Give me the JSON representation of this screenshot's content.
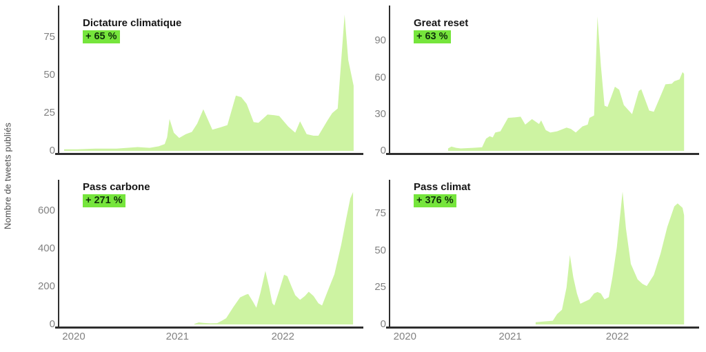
{
  "ylabel": "Nombre de tweets publiés",
  "colors": {
    "area_fill": "#cdf3a2",
    "badge_bg": "#76e53c",
    "badge_text": "#10310a",
    "axis_line": "#2e2e2e",
    "tick_text": "#828282",
    "title_text": "#161616"
  },
  "x_axis": {
    "labels": [
      "2020",
      "2021",
      "2022"
    ],
    "fracs": [
      0.048,
      0.392,
      0.742
    ]
  },
  "chart_data": [
    {
      "type": "area",
      "title": "Dictature climatique",
      "badge": "+ 65 %",
      "ylabel": "Nombre de tweets publiés",
      "y_ticks": [
        0,
        25,
        50,
        75
      ],
      "y_max": 96,
      "x_tick_labels": [
        "2020",
        "2021",
        "2022"
      ],
      "points": [
        [
          0.016,
          1
        ],
        [
          0.06,
          1
        ],
        [
          0.12,
          1.5
        ],
        [
          0.19,
          1.5
        ],
        [
          0.26,
          2.5
        ],
        [
          0.3,
          2
        ],
        [
          0.33,
          3
        ],
        [
          0.35,
          4.5
        ],
        [
          0.358,
          9
        ],
        [
          0.366,
          21
        ],
        [
          0.38,
          12
        ],
        [
          0.398,
          8.5
        ],
        [
          0.42,
          11
        ],
        [
          0.44,
          12.5
        ],
        [
          0.458,
          18
        ],
        [
          0.478,
          27.5
        ],
        [
          0.508,
          14
        ],
        [
          0.535,
          15.5
        ],
        [
          0.558,
          17
        ],
        [
          0.586,
          36.5
        ],
        [
          0.604,
          35.5
        ],
        [
          0.622,
          31
        ],
        [
          0.645,
          19
        ],
        [
          0.661,
          18.5
        ],
        [
          0.691,
          24
        ],
        [
          0.714,
          23.5
        ],
        [
          0.73,
          23
        ],
        [
          0.76,
          16
        ],
        [
          0.783,
          12
        ],
        [
          0.799,
          19.5
        ],
        [
          0.821,
          11
        ],
        [
          0.844,
          10
        ],
        [
          0.86,
          10
        ],
        [
          0.89,
          20
        ],
        [
          0.906,
          25
        ],
        [
          0.924,
          28
        ],
        [
          0.947,
          90
        ],
        [
          0.959,
          60
        ],
        [
          0.977,
          43
        ]
      ]
    },
    {
      "type": "area",
      "title": "Great reset",
      "badge": "+ 63 %",
      "ylabel": "Nombre de tweets publiés",
      "y_ticks": [
        0,
        30,
        60,
        90
      ],
      "y_max": 119,
      "x_tick_labels": [
        "2020",
        "2021",
        "2022"
      ],
      "points": [
        [
          0.189,
          2
        ],
        [
          0.2,
          3.5
        ],
        [
          0.215,
          2.5
        ],
        [
          0.23,
          2
        ],
        [
          0.27,
          2.5
        ],
        [
          0.3,
          3
        ],
        [
          0.313,
          10
        ],
        [
          0.325,
          12
        ],
        [
          0.335,
          11
        ],
        [
          0.343,
          15
        ],
        [
          0.36,
          16
        ],
        [
          0.385,
          27
        ],
        [
          0.41,
          27.5
        ],
        [
          0.426,
          28
        ],
        [
          0.441,
          21.5
        ],
        [
          0.463,
          26
        ],
        [
          0.486,
          22
        ],
        [
          0.493,
          25
        ],
        [
          0.508,
          17
        ],
        [
          0.523,
          15
        ],
        [
          0.545,
          16
        ],
        [
          0.576,
          19
        ],
        [
          0.59,
          18
        ],
        [
          0.606,
          15
        ],
        [
          0.628,
          20
        ],
        [
          0.645,
          21.5
        ],
        [
          0.651,
          27
        ],
        [
          0.666,
          29
        ],
        [
          0.677,
          110
        ],
        [
          0.688,
          70
        ],
        [
          0.7,
          37
        ],
        [
          0.71,
          36
        ],
        [
          0.734,
          52.5
        ],
        [
          0.748,
          50
        ],
        [
          0.763,
          37.5
        ],
        [
          0.79,
          30
        ],
        [
          0.812,
          49
        ],
        [
          0.82,
          50.5
        ],
        [
          0.846,
          33
        ],
        [
          0.861,
          32
        ],
        [
          0.883,
          45
        ],
        [
          0.899,
          54.5
        ],
        [
          0.92,
          55
        ],
        [
          0.928,
          57
        ],
        [
          0.945,
          58.5
        ],
        [
          0.955,
          64.5
        ],
        [
          0.96,
          63
        ]
      ]
    },
    {
      "type": "area",
      "title": "Pass carbone",
      "badge": "+ 271 %",
      "ylabel": "Nombre de tweets publiés",
      "y_ticks": [
        0,
        200,
        400,
        600
      ],
      "y_max": 765,
      "x_tick_labels": [
        "2020",
        "2021",
        "2022"
      ],
      "points": [
        [
          0.448,
          3
        ],
        [
          0.463,
          11
        ],
        [
          0.478,
          8
        ],
        [
          0.501,
          6
        ],
        [
          0.524,
          7
        ],
        [
          0.54,
          20
        ],
        [
          0.554,
          33
        ],
        [
          0.577,
          90
        ],
        [
          0.6,
          143
        ],
        [
          0.62,
          158
        ],
        [
          0.627,
          161
        ],
        [
          0.643,
          120
        ],
        [
          0.654,
          88
        ],
        [
          0.668,
          170
        ],
        [
          0.684,
          283
        ],
        [
          0.696,
          200
        ],
        [
          0.707,
          112
        ],
        [
          0.714,
          100
        ],
        [
          0.73,
          180
        ],
        [
          0.746,
          263
        ],
        [
          0.757,
          255
        ],
        [
          0.771,
          200
        ],
        [
          0.783,
          155
        ],
        [
          0.799,
          130
        ],
        [
          0.815,
          150
        ],
        [
          0.828,
          173
        ],
        [
          0.844,
          150
        ],
        [
          0.86,
          112
        ],
        [
          0.872,
          100
        ],
        [
          0.89,
          173
        ],
        [
          0.913,
          265
        ],
        [
          0.936,
          423
        ],
        [
          0.952,
          557
        ],
        [
          0.966,
          667
        ],
        [
          0.975,
          700
        ]
      ]
    },
    {
      "type": "area",
      "title": "Pass climat",
      "badge": "+ 376 %",
      "ylabel": "Nombre de tweets publiés",
      "y_ticks": [
        0,
        25,
        50,
        75
      ],
      "y_max": 98,
      "x_tick_labels": [
        "2020",
        "2021",
        "2022"
      ],
      "points": [
        [
          0.475,
          1.5
        ],
        [
          0.5,
          2
        ],
        [
          0.531,
          2.5
        ],
        [
          0.545,
          7
        ],
        [
          0.561,
          10
        ],
        [
          0.576,
          25
        ],
        [
          0.587,
          47
        ],
        [
          0.598,
          32
        ],
        [
          0.61,
          21
        ],
        [
          0.621,
          14
        ],
        [
          0.636,
          15.5
        ],
        [
          0.651,
          17
        ],
        [
          0.666,
          21
        ],
        [
          0.677,
          22
        ],
        [
          0.688,
          21
        ],
        [
          0.7,
          17
        ],
        [
          0.714,
          18.5
        ],
        [
          0.726,
          32
        ],
        [
          0.74,
          52
        ],
        [
          0.759,
          90
        ],
        [
          0.77,
          65
        ],
        [
          0.786,
          41
        ],
        [
          0.808,
          30.5
        ],
        [
          0.824,
          27.5
        ],
        [
          0.838,
          26
        ],
        [
          0.861,
          33.5
        ],
        [
          0.883,
          48
        ],
        [
          0.905,
          66
        ],
        [
          0.928,
          80
        ],
        [
          0.939,
          82
        ],
        [
          0.955,
          79
        ],
        [
          0.96,
          74
        ]
      ]
    }
  ]
}
